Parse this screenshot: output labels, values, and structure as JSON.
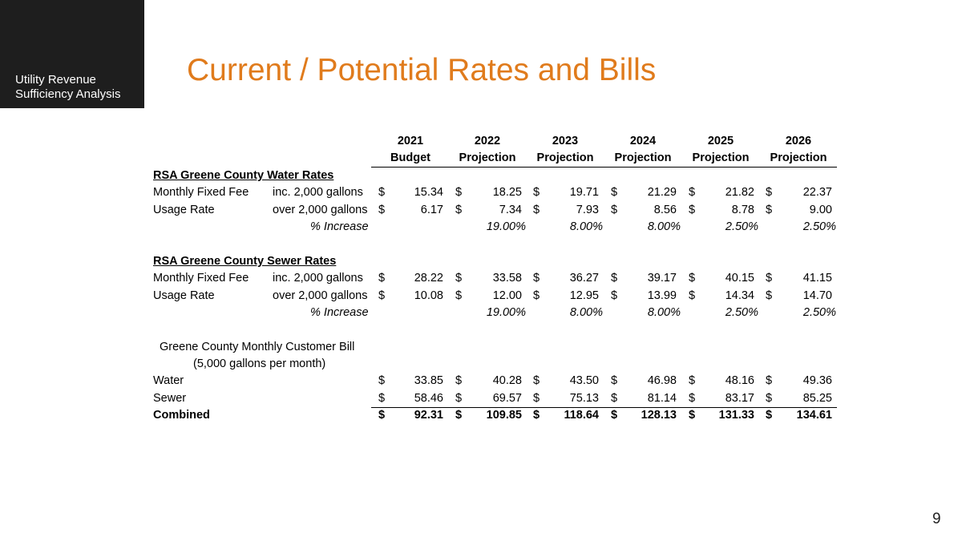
{
  "sidebar": {
    "line1": "Utility Revenue",
    "line2": "Sufficiency Analysis"
  },
  "title": "Current / Potential Rates and Bills",
  "page_number": "9",
  "columns": {
    "years": [
      "2021",
      "2022",
      "2023",
      "2024",
      "2025",
      "2026"
    ],
    "types": [
      "Budget",
      "Projection",
      "Projection",
      "Projection",
      "Projection",
      "Projection"
    ]
  },
  "water": {
    "heading": "RSA Greene County Water Rates",
    "fixed": {
      "label": "Monthly Fixed Fee",
      "sub": "inc. 2,000 gallons",
      "values": [
        "15.34",
        "18.25",
        "19.71",
        "21.29",
        "21.82",
        "22.37"
      ]
    },
    "usage": {
      "label": "Usage Rate",
      "sub": "over 2,000 gallons",
      "values": [
        "6.17",
        "7.34",
        "7.93",
        "8.56",
        "8.78",
        "9.00"
      ]
    },
    "increase": {
      "label": "% Increase",
      "values": [
        "",
        "19.00%",
        "8.00%",
        "8.00%",
        "2.50%",
        "2.50%"
      ]
    }
  },
  "sewer": {
    "heading": "RSA Greene County Sewer Rates",
    "fixed": {
      "label": "Monthly Fixed Fee",
      "sub": "inc. 2,000 gallons",
      "values": [
        "28.22",
        "33.58",
        "36.27",
        "39.17",
        "40.15",
        "41.15"
      ]
    },
    "usage": {
      "label": "Usage Rate",
      "sub": "over 2,000 gallons",
      "values": [
        "10.08",
        "12.00",
        "12.95",
        "13.99",
        "14.34",
        "14.70"
      ]
    },
    "increase": {
      "label": "% Increase",
      "values": [
        "",
        "19.00%",
        "8.00%",
        "8.00%",
        "2.50%",
        "2.50%"
      ]
    }
  },
  "bill": {
    "heading1": "Greene County Monthly Customer Bill",
    "heading2": "(5,000 gallons per month)",
    "water": {
      "label": "Water",
      "values": [
        "33.85",
        "40.28",
        "43.50",
        "46.98",
        "48.16",
        "49.36"
      ]
    },
    "sewer": {
      "label": "Sewer",
      "values": [
        "58.46",
        "69.57",
        "75.13",
        "81.14",
        "83.17",
        "85.25"
      ]
    },
    "combined": {
      "label": "Combined",
      "values": [
        "92.31",
        "109.85",
        "118.64",
        "128.13",
        "131.33",
        "134.61"
      ]
    }
  },
  "currency_symbol": "$"
}
